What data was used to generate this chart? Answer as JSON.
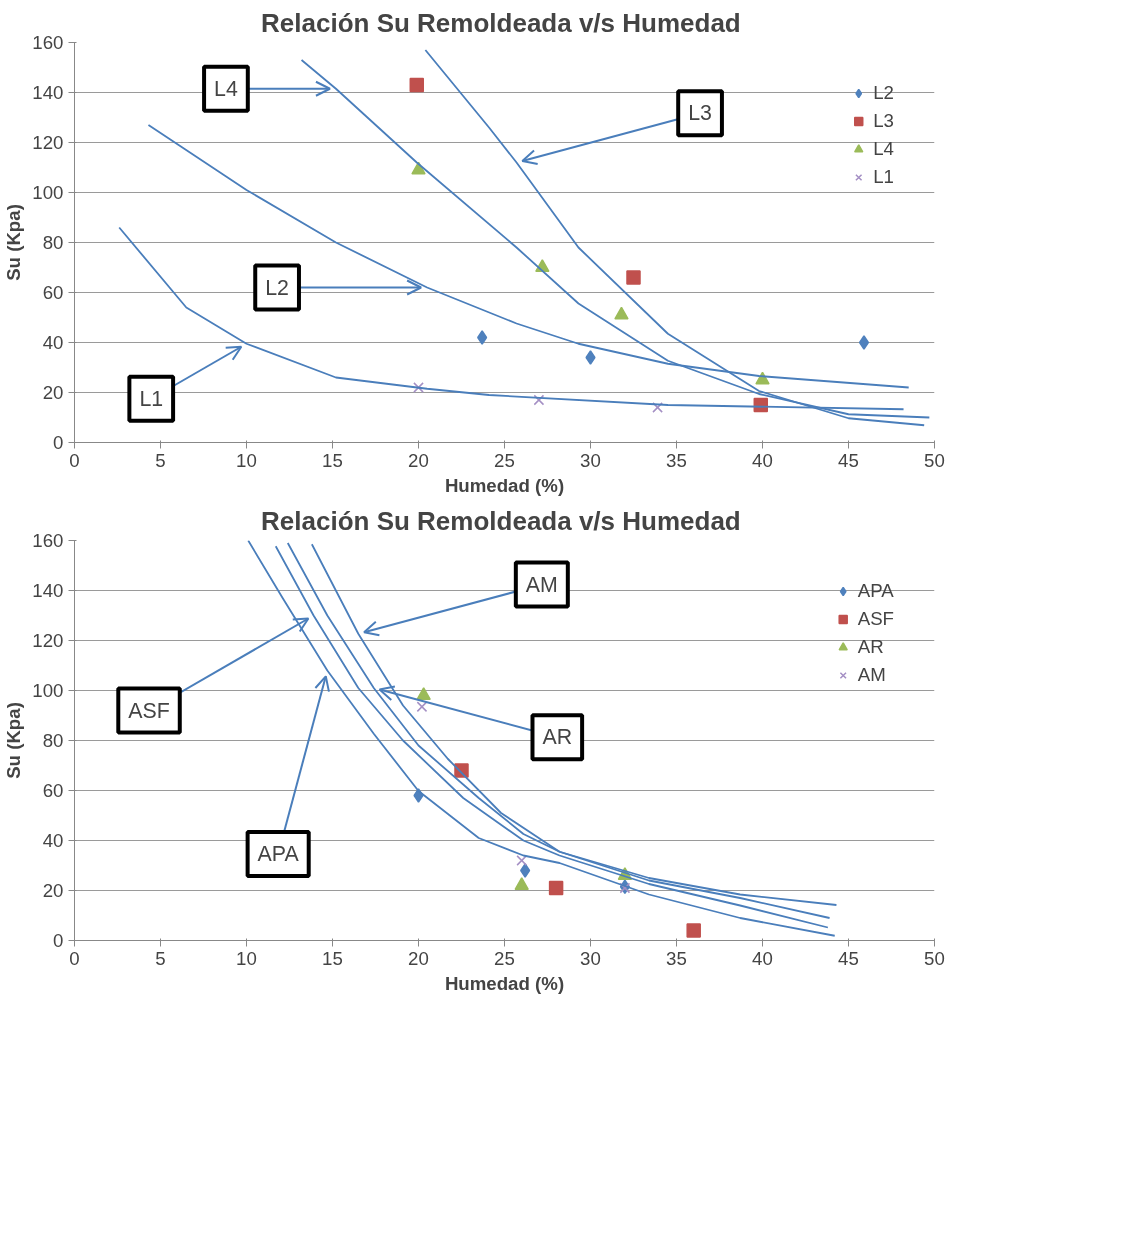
{
  "chart_data": [
    {
      "type": "scatter",
      "title": "Relación Su Remoldeada  v/s Humedad",
      "xlabel": "Humedad (%)",
      "ylabel": "Su (Kpa)",
      "xlim": [
        0,
        50
      ],
      "xticks": [
        0,
        5,
        10,
        15,
        20,
        25,
        30,
        35,
        40,
        45,
        50
      ],
      "ylim": [
        0,
        160
      ],
      "yticks": [
        0,
        20,
        40,
        60,
        80,
        100,
        120,
        140,
        160
      ],
      "grid": "y",
      "legend": "top right",
      "series": [
        {
          "name": "L2",
          "color": "#4f81bd",
          "marker": "diamond",
          "x": [
            23.7,
            30.0,
            45.9
          ],
          "values": [
            42,
            34,
            40
          ]
        },
        {
          "name": "L3",
          "color": "#c0504d",
          "marker": "square",
          "x": [
            19.9,
            32.5,
            39.9
          ],
          "values": [
            143,
            66,
            15
          ]
        },
        {
          "name": "L4",
          "color": "#9bbb59",
          "marker": "triangle",
          "x": [
            20.0,
            27.2,
            31.8,
            40.0
          ],
          "values": [
            109,
            70,
            51,
            25
          ]
        },
        {
          "name": "L1",
          "color": "#a48fc4",
          "marker": "cross",
          "x": [
            20.0,
            27.0,
            33.9
          ],
          "values": [
            22,
            17,
            14
          ]
        },
        {
          "type": "line",
          "color": "#4a7ebb",
          "x": [
            13.2,
            15.2,
            19.9,
            25.7,
            29.3,
            34.5,
            39.8,
            45.0,
            49.7
          ],
          "values": [
            153,
            141.5,
            112,
            78,
            55.6,
            32.7,
            19.4,
            11.3,
            10
          ]
        },
        {
          "type": "line",
          "color": "#4a7ebb",
          "x": [
            20.4,
            24.1,
            25.7,
            29.3,
            34.5,
            39.8,
            45.0,
            49.4
          ],
          "values": [
            157,
            126,
            112,
            78,
            43.5,
            20.6,
            9.7,
            6.9
          ]
        },
        {
          "type": "line",
          "color": "#4a7ebb",
          "x": [
            4.3,
            10.0,
            15.2,
            20.5,
            25.7,
            29.3,
            34.5,
            39.8,
            48.5
          ],
          "values": [
            127,
            101,
            80,
            62,
            47.6,
            39.5,
            31.5,
            26.6,
            22
          ]
        },
        {
          "type": "line",
          "color": "#4a7ebb",
          "x": [
            2.6,
            6.5,
            10.0,
            15.2,
            20.5,
            24.1,
            34.5,
            48.2
          ],
          "values": [
            86,
            54,
            39.5,
            26,
            21.5,
            19,
            15,
            13.3
          ]
        }
      ],
      "annotations": [
        {
          "text": "L4",
          "x": 15.2,
          "y": 141.5
        },
        {
          "text": "L3",
          "x": 25.7,
          "y": 112
        },
        {
          "text": "L2",
          "x": 20.5,
          "y": 62
        },
        {
          "text": "L1",
          "x": 10.0,
          "y": 39.5
        }
      ]
    },
    {
      "type": "scatter",
      "title": "Relación Su Remoldeada  v/s Humedad",
      "xlabel": "Humedad (%)",
      "ylabel": "Su (Kpa)",
      "xlim": [
        0,
        50
      ],
      "xticks": [
        0,
        5,
        10,
        15,
        20,
        25,
        30,
        35,
        40,
        45,
        50
      ],
      "ylim": [
        0,
        160
      ],
      "yticks": [
        0,
        20,
        40,
        60,
        80,
        100,
        120,
        140,
        160
      ],
      "grid": "y",
      "legend": "top right",
      "series": [
        {
          "name": "APA",
          "color": "#4f81bd",
          "marker": "diamond",
          "x": [
            20.0,
            26.2,
            32.0
          ],
          "values": [
            58,
            28,
            21.5
          ]
        },
        {
          "name": "ASF",
          "color": "#c0504d",
          "marker": "square",
          "x": [
            22.5,
            28.0,
            36.0
          ],
          "values": [
            68,
            21,
            4
          ]
        },
        {
          "name": "AR",
          "color": "#9bbb59",
          "marker": "triangle",
          "x": [
            20.3,
            26.0,
            32.0
          ],
          "values": [
            98,
            22,
            26
          ]
        },
        {
          "name": "AM",
          "color": "#a48fc4",
          "marker": "cross",
          "x": [
            20.2,
            26.0,
            32.0
          ],
          "values": [
            93.5,
            32,
            21
          ]
        },
        {
          "type": "line",
          "color": "#4a7ebb",
          "x": [
            11.7,
            13.9,
            16.5,
            19.1,
            22.6,
            26.1,
            28.2,
            33.4,
            38.7,
            43.8
          ],
          "values": [
            157.7,
            130,
            101,
            80,
            57,
            40,
            34,
            22.6,
            14,
            5.2
          ]
        },
        {
          "type": "line",
          "color": "#4a7ebb",
          "x": [
            13.8,
            16.5,
            19.1,
            21.7,
            24.8,
            28.2,
            33.4,
            38.7,
            44.3
          ],
          "values": [
            158.5,
            122.7,
            94,
            72.7,
            51,
            35.5,
            25,
            18.4,
            14.2
          ]
        },
        {
          "type": "line",
          "color": "#4a7ebb",
          "x": [
            10.1,
            12.1,
            14.7,
            17.4,
            20.0,
            23.5,
            26.1,
            28.2,
            33.4,
            38.7,
            44.2
          ],
          "values": [
            160,
            137,
            108,
            82.7,
            59.8,
            41,
            34,
            31,
            18.4,
            9,
            1.9
          ]
        },
        {
          "type": "line",
          "color": "#4a7ebb",
          "x": [
            12.4,
            14.7,
            17.4,
            20.0,
            23.5,
            26.1,
            28.2,
            33.4,
            38.7,
            43.9
          ],
          "values": [
            159,
            130,
            101,
            78,
            57,
            42.6,
            35.5,
            24,
            17,
            9
          ]
        }
      ],
      "annotations": [
        {
          "text": "ASF",
          "x": 13.9,
          "y": 130
        },
        {
          "text": "AM",
          "x": 16.5,
          "y": 122.7
        },
        {
          "text": "APA",
          "x": 14.7,
          "y": 108
        },
        {
          "text": "AR",
          "x": 17.4,
          "y": 101
        }
      ]
    }
  ]
}
